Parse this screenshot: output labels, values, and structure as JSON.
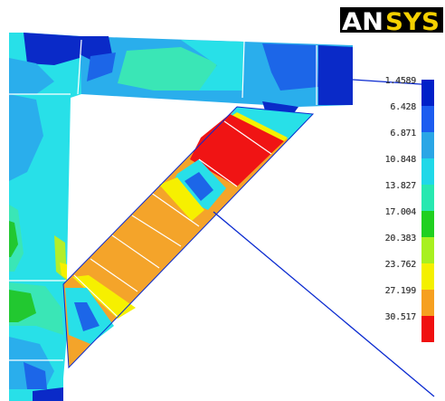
{
  "logo": {
    "text_part1": "AN",
    "text_part2": "SYS",
    "color_part1": "#ffffff",
    "color_part2": "#f4d000",
    "background": "#000000"
  },
  "legend": {
    "levels": [
      {
        "label": "1.4589",
        "color": "#0020c8"
      },
      {
        "label": "6.428",
        "color": "#1c5cf0"
      },
      {
        "label": "6.871",
        "color": "#2aa6e6"
      },
      {
        "label": "10.848",
        "color": "#20d8e8"
      },
      {
        "label": "13.827",
        "color": "#28e8b0"
      },
      {
        "label": "17.004",
        "color": "#20d020"
      },
      {
        "label": "20.383",
        "color": "#a8f020"
      },
      {
        "label": "23.762",
        "color": "#f4f000"
      },
      {
        "label": "27.199",
        "color": "#f6a020"
      },
      {
        "label": "30.517",
        "color": "#f01010"
      }
    ]
  },
  "colors": {
    "dark_blue": "#0a2ac8",
    "blue": "#1c66e8",
    "light_blue": "#2aaeec",
    "cyan": "#28e0e8",
    "aqua_green": "#3ae6b6",
    "green": "#22c830",
    "yellow_green": "#b4ee2a",
    "yellow": "#f6f000",
    "orange": "#f4a42a",
    "red": "#f01414",
    "outline": "#0a2ad0"
  }
}
